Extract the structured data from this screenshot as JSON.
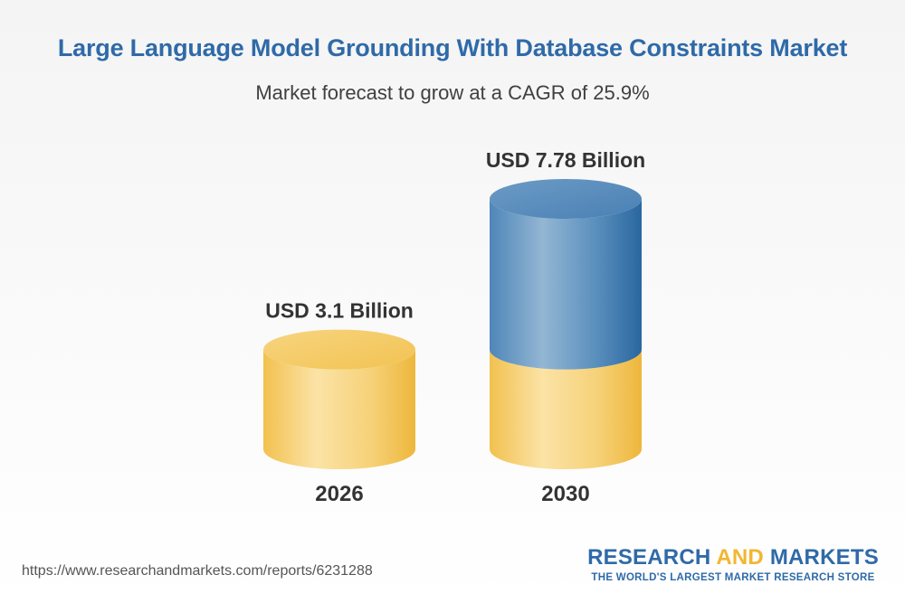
{
  "header": {
    "title": "Large Language Model Grounding With Database Constraints Market",
    "subtitle": "Market forecast to grow at a CAGR of 25.9%"
  },
  "footer": {
    "url": "https://www.researchandmarkets.com/reports/6231288"
  },
  "brand": {
    "name_part1": "RESEARCH ",
    "name_part2": "AND",
    "name_part3": " MARKETS",
    "tagline": "THE WORLD'S LARGEST MARKET RESEARCH STORE"
  },
  "colors": {
    "title": "#2f6aa8",
    "base_segment": "#f2c04e",
    "growth_segment": "#3c76ab",
    "brand_accent": "#f2b632"
  },
  "chart_data": {
    "type": "bar",
    "style": "3d-cylinder",
    "categories": [
      "2026",
      "2030"
    ],
    "values": [
      3.1,
      7.78
    ],
    "value_labels": [
      "USD 3.1 Billion",
      "USD 7.78 Billion"
    ],
    "unit": "USD Billion",
    "cagr": "25.9%",
    "ylim": [
      0,
      7.78
    ],
    "grid": false,
    "legend": "none"
  }
}
